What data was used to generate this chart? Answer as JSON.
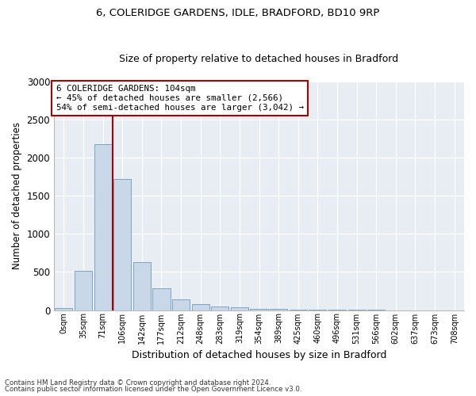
{
  "title1": "6, COLERIDGE GARDENS, IDLE, BRADFORD, BD10 9RP",
  "title2": "Size of property relative to detached houses in Bradford",
  "xlabel": "Distribution of detached houses by size in Bradford",
  "ylabel": "Number of detached properties",
  "footnote1": "Contains HM Land Registry data © Crown copyright and database right 2024.",
  "footnote2": "Contains public sector information licensed under the Open Government Licence v3.0.",
  "annotation_line1": "6 COLERIDGE GARDENS: 104sqm",
  "annotation_line2": "← 45% of detached houses are smaller (2,566)",
  "annotation_line3": "54% of semi-detached houses are larger (3,042) →",
  "bar_labels": [
    "0sqm",
    "35sqm",
    "71sqm",
    "106sqm",
    "142sqm",
    "177sqm",
    "212sqm",
    "248sqm",
    "283sqm",
    "319sqm",
    "354sqm",
    "389sqm",
    "425sqm",
    "460sqm",
    "496sqm",
    "531sqm",
    "566sqm",
    "602sqm",
    "637sqm",
    "673sqm",
    "708sqm"
  ],
  "bar_values": [
    30,
    510,
    2180,
    1720,
    630,
    290,
    140,
    80,
    45,
    35,
    20,
    20,
    10,
    5,
    3,
    2,
    1,
    0,
    0,
    0,
    0
  ],
  "bar_color": "#c8d8e8",
  "bar_edge_color": "#7099bb",
  "highlight_color": "#aa0000",
  "ylim": [
    0,
    3000
  ],
  "yticks": [
    0,
    500,
    1000,
    1500,
    2000,
    2500,
    3000
  ],
  "vline_x": 2.5,
  "plot_bg_color": "#e8edf4",
  "grid_color": "#ffffff",
  "title1_fontsize": 9.5,
  "title2_fontsize": 9
}
